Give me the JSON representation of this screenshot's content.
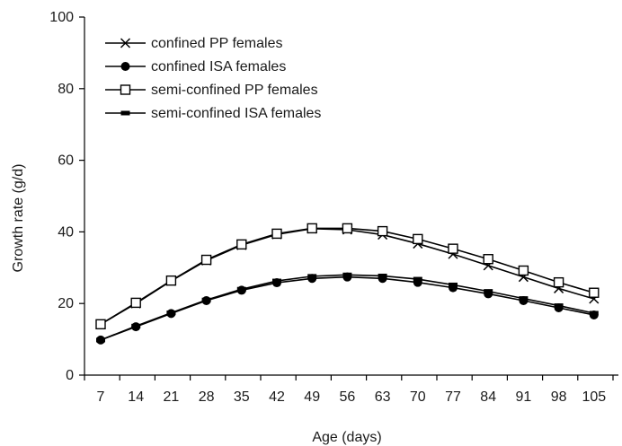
{
  "chart_data": {
    "type": "line",
    "title": "",
    "xlabel": "Age (days)",
    "ylabel": "Growth rate (g/d)",
    "ylim": [
      0,
      100
    ],
    "yticks": [
      0,
      20,
      40,
      60,
      80,
      100
    ],
    "categories": [
      "7",
      "14",
      "21",
      "28",
      "35",
      "42",
      "49",
      "56",
      "63",
      "70",
      "77",
      "84",
      "91",
      "98",
      "105"
    ],
    "grid": false,
    "legend_position": "top-left",
    "series": [
      {
        "name": "confined PP females",
        "marker": "cross",
        "values": [
          14.2,
          20.0,
          26.3,
          32.0,
          36.3,
          39.3,
          40.9,
          40.6,
          39.2,
          36.7,
          33.8,
          30.6,
          27.4,
          24.2,
          21.3
        ]
      },
      {
        "name": "confined ISA females",
        "marker": "filled-circle",
        "values": [
          9.8,
          13.5,
          17.2,
          20.8,
          23.7,
          25.8,
          27.0,
          27.4,
          27.0,
          25.9,
          24.4,
          22.7,
          20.8,
          18.8,
          16.8
        ]
      },
      {
        "name": "semi-confined PP females",
        "marker": "open-square",
        "values": [
          14.2,
          20.2,
          26.4,
          32.2,
          36.5,
          39.5,
          41.0,
          41.0,
          40.2,
          38.0,
          35.3,
          32.4,
          29.2,
          25.9,
          23.0
        ]
      },
      {
        "name": "semi-confined ISA females",
        "marker": "filled-dash",
        "values": [
          9.8,
          13.7,
          17.4,
          21.0,
          24.0,
          26.3,
          27.6,
          28.0,
          27.7,
          26.8,
          25.2,
          23.4,
          21.4,
          19.4,
          17.3
        ]
      }
    ]
  }
}
